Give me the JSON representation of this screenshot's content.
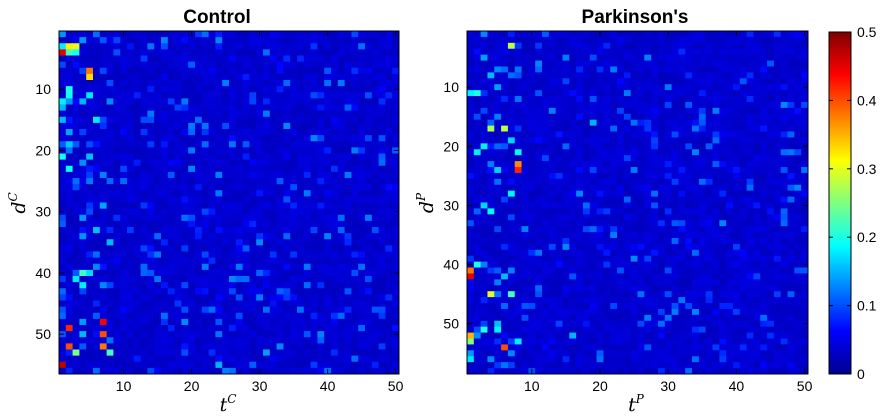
{
  "figure": {
    "colorbar": {
      "ticks": [
        "0",
        "0.1",
        "0.2",
        "0.3",
        "0.4",
        "0.5"
      ],
      "range": [
        0,
        0.5
      ],
      "colormap": "jet"
    }
  },
  "chart_data": [
    {
      "type": "heatmap",
      "title": "Control",
      "xlabel_base": "t",
      "xlabel_sup": "C",
      "ylabel_base": "d",
      "ylabel_sup": "C",
      "x_range": [
        1,
        50
      ],
      "y_range": [
        1,
        56
      ],
      "x_ticks": [
        "10",
        "20",
        "30",
        "40",
        "50"
      ],
      "y_ticks": [
        "10",
        "20",
        "30",
        "40",
        "50"
      ],
      "value_range": [
        0,
        0.5
      ],
      "background_level": 0.03,
      "notable_cells": [
        {
          "x": 1,
          "y": 4,
          "v": 0.45
        },
        {
          "x": 2,
          "y": 3,
          "v": 0.32
        },
        {
          "x": 3,
          "y": 3,
          "v": 0.3
        },
        {
          "x": 2,
          "y": 4,
          "v": 0.22
        },
        {
          "x": 3,
          "y": 4,
          "v": 0.2
        },
        {
          "x": 5,
          "y": 7,
          "v": 0.38
        },
        {
          "x": 5,
          "y": 8,
          "v": 0.33
        },
        {
          "x": 1,
          "y": 12,
          "v": 0.18
        },
        {
          "x": 2,
          "y": 10,
          "v": 0.2
        },
        {
          "x": 2,
          "y": 19,
          "v": 0.16
        },
        {
          "x": 4,
          "y": 40,
          "v": 0.22
        },
        {
          "x": 4,
          "y": 42,
          "v": 0.18
        },
        {
          "x": 5,
          "y": 40,
          "v": 0.17
        },
        {
          "x": 2,
          "y": 49,
          "v": 0.42
        },
        {
          "x": 2,
          "y": 52,
          "v": 0.4
        },
        {
          "x": 7,
          "y": 48,
          "v": 0.44
        },
        {
          "x": 7,
          "y": 50,
          "v": 0.4
        },
        {
          "x": 7,
          "y": 52,
          "v": 0.38
        },
        {
          "x": 1,
          "y": 55,
          "v": 0.47
        },
        {
          "x": 3,
          "y": 53,
          "v": 0.25
        },
        {
          "x": 8,
          "y": 53,
          "v": 0.22
        },
        {
          "x": 24,
          "y": 55,
          "v": 0.15
        },
        {
          "x": 31,
          "y": 53,
          "v": 0.14
        }
      ]
    },
    {
      "type": "heatmap",
      "title": "Parkinson's",
      "xlabel_base": "t",
      "xlabel_sup": "P",
      "ylabel_base": "d",
      "ylabel_sup": "P",
      "x_range": [
        1,
        50
      ],
      "y_range": [
        1,
        58
      ],
      "x_ticks": [
        "10",
        "20",
        "30",
        "40",
        "50"
      ],
      "y_ticks": [
        "10",
        "20",
        "30",
        "40",
        "50"
      ],
      "value_range": [
        0,
        0.5
      ],
      "background_level": 0.03,
      "notable_cells": [
        {
          "x": 7,
          "y": 3,
          "v": 0.28
        },
        {
          "x": 1,
          "y": 11,
          "v": 0.18
        },
        {
          "x": 2,
          "y": 11,
          "v": 0.2
        },
        {
          "x": 4,
          "y": 17,
          "v": 0.27
        },
        {
          "x": 6,
          "y": 17,
          "v": 0.28
        },
        {
          "x": 2,
          "y": 21,
          "v": 0.18
        },
        {
          "x": 8,
          "y": 23,
          "v": 0.37
        },
        {
          "x": 8,
          "y": 24,
          "v": 0.42
        },
        {
          "x": 19,
          "y": 16,
          "v": 0.15
        },
        {
          "x": 1,
          "y": 41,
          "v": 0.38
        },
        {
          "x": 1,
          "y": 42,
          "v": 0.45
        },
        {
          "x": 2,
          "y": 40,
          "v": 0.2
        },
        {
          "x": 4,
          "y": 45,
          "v": 0.3
        },
        {
          "x": 7,
          "y": 45,
          "v": 0.22
        },
        {
          "x": 1,
          "y": 52,
          "v": 0.35
        },
        {
          "x": 1,
          "y": 53,
          "v": 0.25
        },
        {
          "x": 3,
          "y": 51,
          "v": 0.2
        },
        {
          "x": 6,
          "y": 54,
          "v": 0.4
        },
        {
          "x": 8,
          "y": 53,
          "v": 0.18
        },
        {
          "x": 16,
          "y": 52,
          "v": 0.15
        }
      ]
    }
  ]
}
